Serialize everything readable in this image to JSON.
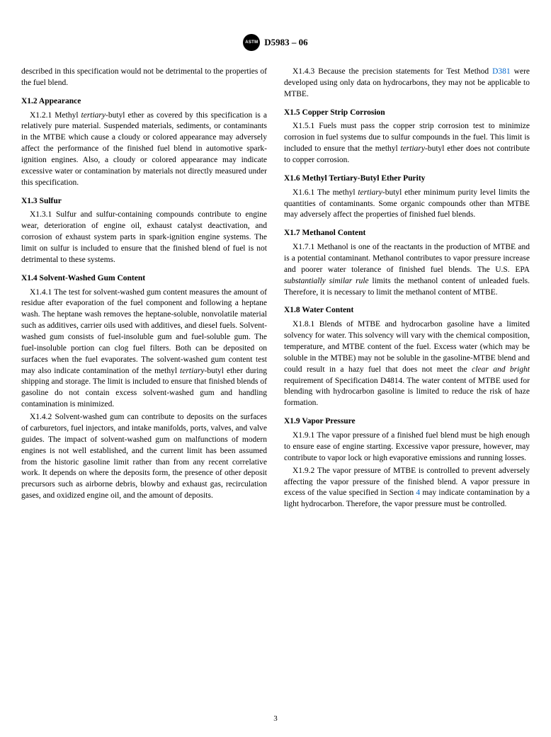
{
  "header": {
    "logo_text": "ASTM",
    "designation": "D5983 – 06"
  },
  "intro_para": "described in this specification would not be detrimental to the properties of the fuel blend.",
  "sections": {
    "x12": {
      "head": "X1.2  Appearance",
      "p1_num": "X1.2.1  Methyl ",
      "p1_ital": "tertiary",
      "p1_rest": "-butyl ether as covered by this specification is a relatively pure material. Suspended materials, sediments, or contaminants in the MTBE which cause a cloudy or colored appearance may adversely affect the performance of the finished fuel blend in automotive spark-ignition engines. Also, a cloudy or colored appearance may indicate excessive water or contamination by materials not directly measured under this specification."
    },
    "x13": {
      "head": "X1.3  Sulfur",
      "p1": "X1.3.1  Sulfur and sulfur-containing compounds contribute to engine wear, deterioration of engine oil, exhaust catalyst deactivation, and corrosion of exhaust system parts in spark-ignition engine systems. The limit on sulfur is included to ensure that the finished blend of fuel is not detrimental to these systems."
    },
    "x14": {
      "head": "X1.4  Solvent-Washed Gum Content",
      "p1_a": "X1.4.1  The test for solvent-washed gum content measures the amount of residue after evaporation of the fuel component and following a heptane wash. The heptane wash removes the heptane-soluble, nonvolatile material such as additives, carrier oils used with additives, and diesel fuels. Solvent-washed gum consists of fuel-insoluble gum and fuel-soluble gum. The fuel-insoluble portion can clog fuel filters. Both can be deposited on surfaces when the fuel evaporates. The solvent-washed gum content test may also indicate contamination of the methyl ",
      "p1_ital": "tertiary",
      "p1_b": "-butyl ether during shipping and storage. The limit is included to ensure that finished blends of gasoline do not contain excess solvent-washed gum and handling contamination is minimized.",
      "p2": "X1.4.2  Solvent-washed gum can contribute to deposits on the surfaces of carburetors, fuel injectors, and intake manifolds, ports, valves, and valve guides. The impact of solvent-washed gum on malfunctions of modern engines is not well established, and the current limit has been assumed from the historic gasoline limit rather than from any recent correlative work. It depends on where the deposits form, the presence of other deposit precursors such as airborne debris, blowby and exhaust gas, recirculation gases, and oxidized engine oil, and the amount of deposits.",
      "p3_a": "X1.4.3  Because the precision statements for Test Method ",
      "p3_link": "D381",
      "p3_b": " were developed using only data on hydrocarbons, they may not be applicable to MTBE."
    },
    "x15": {
      "head": "X1.5  Copper Strip Corrosion",
      "p1_a": "X1.5.1  Fuels must pass the copper strip corrosion test to minimize corrosion in fuel systems due to sulfur compounds in the fuel. This limit is included to ensure that the methyl ",
      "p1_ital": "tertiary",
      "p1_b": "-butyl ether does not contribute to copper corrosion."
    },
    "x16": {
      "head": "X1.6  Methyl Tertiary-Butyl Ether Purity",
      "p1_a": "X1.6.1 The methyl ",
      "p1_ital": "tertiary",
      "p1_b": "-butyl ether minimum purity level limits the quantities of contaminants. Some organic compounds other than MTBE may adversely affect the properties of finished fuel blends."
    },
    "x17": {
      "head": "X1.7  Methanol Content",
      "p1_a": "X1.7.1  Methanol is one of the reactants in the production of MTBE and is a potential contaminant. Methanol contributes to vapor pressure increase and poorer water tolerance of finished fuel blends. The U.S. EPA ",
      "p1_ital": "substantially similar rule",
      "p1_b": " limits the methanol content of unleaded fuels. Therefore, it is necessary to limit the methanol content of MTBE."
    },
    "x18": {
      "head": "X1.8  Water Content",
      "p1_a": "X1.8.1  Blends of MTBE and hydrocarbon gasoline have a limited solvency for water. This solvency will vary with the chemical composition, temperature, and MTBE content of the fuel. Excess water (which may be soluble in the MTBE) may not be soluble in the gasoline-MTBE blend and could result in a hazy fuel that does not meet the ",
      "p1_ital": "clear and bright",
      "p1_b": " requirement of Specification D4814. The water content of MTBE used for blending with hydrocarbon gasoline is limited to reduce the risk of haze formation."
    },
    "x19": {
      "head": "X1.9  Vapor Pressure",
      "p1": "X1.9.1  The vapor pressure of a finished fuel blend must be high enough to ensure ease of engine starting. Excessive vapor pressure, however, may contribute to vapor lock or high evaporative emissions and running losses.",
      "p2_a": "X1.9.2  The vapor pressure of MTBE is controlled to prevent adversely affecting the vapor pressure of the finished blend. A vapor pressure in excess of the value specified in Section ",
      "p2_link": "4",
      "p2_b": " may indicate contamination by a light hydrocarbon. Therefore, the vapor pressure must be controlled."
    }
  },
  "page_number": "3"
}
